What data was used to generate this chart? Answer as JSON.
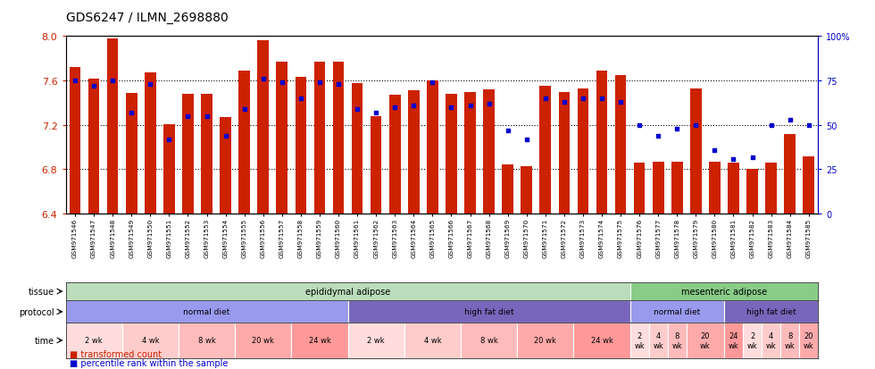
{
  "title": "GDS6247 / ILMN_2698880",
  "samples": [
    "GSM971546",
    "GSM971547",
    "GSM971548",
    "GSM971549",
    "GSM971550",
    "GSM971551",
    "GSM971552",
    "GSM971553",
    "GSM971554",
    "GSM971555",
    "GSM971556",
    "GSM971557",
    "GSM971558",
    "GSM971559",
    "GSM971560",
    "GSM971561",
    "GSM971562",
    "GSM971563",
    "GSM971564",
    "GSM971565",
    "GSM971566",
    "GSM971567",
    "GSM971568",
    "GSM971569",
    "GSM971570",
    "GSM971571",
    "GSM971572",
    "GSM971573",
    "GSM971574",
    "GSM971575",
    "GSM971576",
    "GSM971577",
    "GSM971578",
    "GSM971579",
    "GSM971580",
    "GSM971581",
    "GSM971582",
    "GSM971583",
    "GSM971584",
    "GSM971585"
  ],
  "bar_values": [
    7.72,
    7.62,
    7.98,
    7.49,
    7.67,
    7.21,
    7.48,
    7.48,
    7.27,
    7.69,
    7.96,
    7.77,
    7.63,
    7.77,
    7.77,
    7.58,
    7.28,
    7.47,
    7.51,
    7.6,
    7.48,
    7.5,
    7.52,
    6.84,
    6.83,
    7.55,
    7.5,
    7.53,
    7.69,
    7.65,
    6.86,
    6.87,
    6.87,
    7.53,
    6.87,
    6.86,
    6.8,
    6.86,
    7.12,
    6.92
  ],
  "percentile_values": [
    75,
    72,
    75,
    57,
    73,
    42,
    55,
    55,
    44,
    59,
    76,
    74,
    65,
    74,
    73,
    59,
    57,
    60,
    61,
    74,
    60,
    61,
    62,
    47,
    42,
    65,
    63,
    65,
    65,
    63,
    50,
    44,
    48,
    50,
    36,
    31,
    32,
    50,
    53,
    50
  ],
  "ylim": [
    6.4,
    8.0
  ],
  "yticks": [
    6.4,
    6.8,
    7.2,
    7.6,
    8.0
  ],
  "bar_color": "#cc2200",
  "dot_color": "#0000cc",
  "tissue_groups": [
    {
      "label": "epididymal adipose",
      "start": 0,
      "end": 30,
      "color": "#bbddbb"
    },
    {
      "label": "mesenteric adipose",
      "start": 30,
      "end": 40,
      "color": "#88cc88"
    }
  ],
  "protocol_groups": [
    {
      "label": "normal diet",
      "start": 0,
      "end": 15,
      "color": "#9999ee"
    },
    {
      "label": "high fat diet",
      "start": 15,
      "end": 30,
      "color": "#7766bb"
    },
    {
      "label": "normal diet",
      "start": 30,
      "end": 35,
      "color": "#9999ee"
    },
    {
      "label": "high fat diet",
      "start": 35,
      "end": 40,
      "color": "#7766bb"
    }
  ],
  "time_groups": [
    {
      "label": "2 wk",
      "start": 0,
      "end": 3,
      "color": "#ffdddd"
    },
    {
      "label": "4 wk",
      "start": 3,
      "end": 6,
      "color": "#ffcccc"
    },
    {
      "label": "8 wk",
      "start": 6,
      "end": 9,
      "color": "#ffbbbb"
    },
    {
      "label": "20 wk",
      "start": 9,
      "end": 12,
      "color": "#ffaaaa"
    },
    {
      "label": "24 wk",
      "start": 12,
      "end": 15,
      "color": "#ff9999"
    },
    {
      "label": "2 wk",
      "start": 15,
      "end": 18,
      "color": "#ffdddd"
    },
    {
      "label": "4 wk",
      "start": 18,
      "end": 21,
      "color": "#ffcccc"
    },
    {
      "label": "8 wk",
      "start": 21,
      "end": 24,
      "color": "#ffbbbb"
    },
    {
      "label": "20 wk",
      "start": 24,
      "end": 27,
      "color": "#ffaaaa"
    },
    {
      "label": "24 wk",
      "start": 27,
      "end": 30,
      "color": "#ff9999"
    },
    {
      "label": "2\nwk",
      "start": 30,
      "end": 31,
      "color": "#ffdddd"
    },
    {
      "label": "4\nwk",
      "start": 31,
      "end": 32,
      "color": "#ffcccc"
    },
    {
      "label": "8\nwk",
      "start": 32,
      "end": 33,
      "color": "#ffbbbb"
    },
    {
      "label": "20\nwk",
      "start": 33,
      "end": 35,
      "color": "#ffaaaa"
    },
    {
      "label": "24\nwk",
      "start": 35,
      "end": 36,
      "color": "#ff9999"
    },
    {
      "label": "2\nwk",
      "start": 36,
      "end": 37,
      "color": "#ffdddd"
    },
    {
      "label": "4\nwk",
      "start": 37,
      "end": 38,
      "color": "#ffcccc"
    },
    {
      "label": "8\nwk",
      "start": 38,
      "end": 39,
      "color": "#ffbbbb"
    },
    {
      "label": "20\nwk",
      "start": 39,
      "end": 40,
      "color": "#ffaaaa"
    },
    {
      "label": "24\nwk",
      "start": 40,
      "end": 40,
      "color": "#ff9999"
    }
  ],
  "legend_items": [
    {
      "label": "transformed count",
      "color": "#cc2200"
    },
    {
      "label": "percentile rank within the sample",
      "color": "#0000cc"
    }
  ]
}
